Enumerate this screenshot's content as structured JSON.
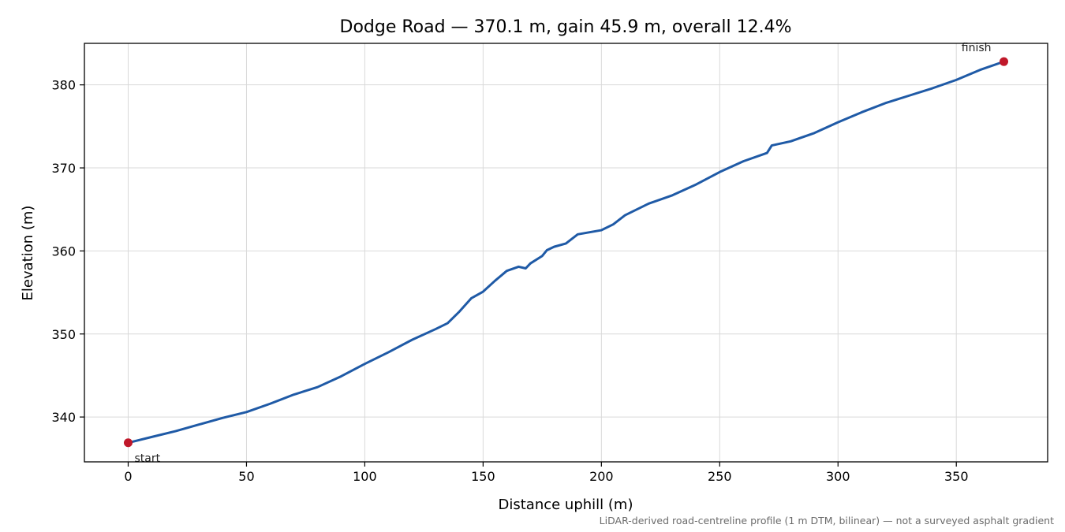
{
  "chart_data": {
    "type": "line",
    "title": "Dodge Road — 370.1 m, gain 45.9 m, overall 12.4%",
    "xlabel": "Distance uphill (m)",
    "ylabel": "Elevation (m)",
    "xlim": [
      -18.5,
      388.6
    ],
    "ylim": [
      334.6,
      385.0
    ],
    "xticks": [
      0,
      50,
      100,
      150,
      200,
      250,
      300,
      350
    ],
    "yticks": [
      340,
      350,
      360,
      370,
      380
    ],
    "grid": true,
    "footnote": "LiDAR-derived road-centreline profile (1 m DTM, bilinear) — not a surveyed asphalt gradient",
    "series": [
      {
        "color": "#1f5aa6",
        "x": [
          0,
          10,
          20,
          30,
          40,
          50,
          60,
          70,
          80,
          90,
          100,
          110,
          120,
          130,
          135,
          140,
          145,
          150,
          155,
          160,
          165,
          168,
          170,
          175,
          177,
          180,
          185,
          190,
          200,
          205,
          210,
          220,
          230,
          240,
          250,
          260,
          270,
          272,
          280,
          290,
          300,
          310,
          320,
          330,
          340,
          350,
          360,
          370.1
        ],
        "y": [
          336.9,
          337.6,
          338.3,
          339.1,
          339.9,
          340.6,
          341.6,
          342.7,
          343.6,
          344.9,
          346.4,
          347.8,
          349.3,
          350.6,
          351.3,
          352.7,
          354.3,
          355.1,
          356.4,
          357.6,
          358.1,
          357.9,
          358.5,
          359.4,
          360.1,
          360.5,
          360.9,
          362.0,
          362.5,
          363.2,
          364.3,
          365.7,
          366.7,
          368.0,
          369.5,
          370.8,
          371.8,
          372.7,
          373.2,
          374.2,
          375.5,
          376.7,
          377.8,
          378.7,
          379.6,
          380.6,
          381.8,
          382.8
        ]
      }
    ],
    "markers": [
      {
        "label": "start",
        "x": 0,
        "y": 336.9,
        "color": "#c0182a"
      },
      {
        "label": "finish",
        "x": 370.1,
        "y": 382.8,
        "color": "#c0182a"
      }
    ]
  }
}
